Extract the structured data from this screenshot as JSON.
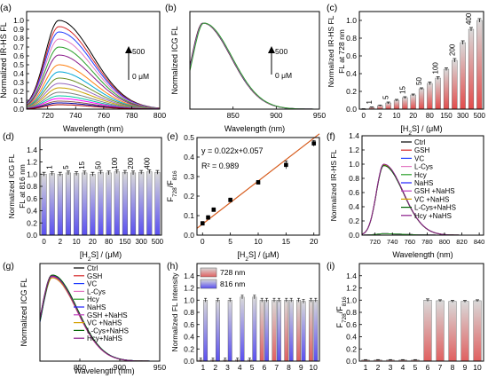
{
  "chart_data": [
    {
      "panel": "(a)",
      "type": "line",
      "xlabel": "Wavelength (nm)",
      "ylabel": "Normalized IR-HS FL",
      "xlim": [
        705,
        800
      ],
      "ylim": [
        0,
        1.1
      ],
      "xticks": [
        720,
        740,
        760,
        780,
        800
      ],
      "yticks": [
        0.0,
        0.1,
        0.2,
        0.3,
        0.4,
        0.5,
        0.6,
        0.7,
        0.8,
        0.9,
        1.0
      ],
      "annotation_high": "500",
      "annotation_low": "0 μM",
      "peak_x": 728,
      "curve_peaks": [
        1.0,
        0.93,
        0.87,
        0.79,
        0.7,
        0.61,
        0.5,
        0.42,
        0.35,
        0.29,
        0.24,
        0.19,
        0.15,
        0.12,
        0.09,
        0.07,
        0.05
      ],
      "colors": [
        "#000000",
        "#d62728",
        "#1f3cff",
        "#e377c2",
        "#2ca02c",
        "#8b1c8b",
        "#ff7f0e",
        "#00a6d6",
        "#6b8e23",
        "#9467bd",
        "#c8a000",
        "#7f7f7f",
        "#00c8a0",
        "#ff00ff",
        "#8c564b",
        "#0000aa",
        "#aa0000"
      ]
    },
    {
      "panel": "(b)",
      "type": "line",
      "xlabel": "Wavelength (nm)",
      "ylabel": "Normalized ICG FL",
      "xlim": [
        800,
        950
      ],
      "ylim": [
        0,
        1.1
      ],
      "xticks": [
        850,
        900,
        950
      ],
      "annotation_high": "500",
      "annotation_low": "0 μM",
      "peak_x": 815,
      "peak_y": 0.97
    },
    {
      "panel": "(c)",
      "type": "bar",
      "xlabel": "[H2S] / (μM)",
      "ylabel": "Normalized IR-HS FL at 728 nm",
      "categories": [
        "0",
        "1",
        "2",
        "5",
        "10",
        "15",
        "20",
        "50",
        "80",
        "100",
        "150",
        "200",
        "300",
        "400",
        "500"
      ],
      "values": [
        0.0,
        0.02,
        0.04,
        0.07,
        0.1,
        0.13,
        0.16,
        0.23,
        0.29,
        0.35,
        0.45,
        0.55,
        0.75,
        0.9,
        1.0
      ],
      "errors": [
        0.005,
        0.005,
        0.005,
        0.01,
        0.01,
        0.01,
        0.01,
        0.01,
        0.015,
        0.015,
        0.015,
        0.02,
        0.02,
        0.02,
        0.02
      ],
      "xticks": [
        "0",
        "2",
        "10",
        "20",
        "80",
        "150",
        "300",
        "500"
      ],
      "ylim": [
        0,
        1.1
      ],
      "yticks": [
        0.0,
        0.2,
        0.4,
        0.6,
        0.8,
        1.0
      ],
      "bar_labels": [
        {
          "after": "1",
          "text": "1"
        },
        {
          "after": "5",
          "text": "5"
        },
        {
          "after": "15",
          "text": "15"
        },
        {
          "after": "50",
          "text": "50"
        },
        {
          "after": "100",
          "text": "100"
        },
        {
          "after": "200",
          "text": "200"
        },
        {
          "after": "400",
          "text": "400"
        }
      ]
    },
    {
      "panel": "(d)",
      "type": "bar",
      "xlabel": "[H2S] / (μM)",
      "ylabel": "Normalized ICG FL at 816 nm",
      "categories": [
        "0",
        "1",
        "2",
        "5",
        "10",
        "15",
        "20",
        "50",
        "80",
        "100",
        "150",
        "200",
        "300",
        "400",
        "500"
      ],
      "values": [
        1.0,
        1.01,
        1.0,
        1.02,
        1.01,
        1.02,
        1.0,
        1.03,
        1.02,
        1.04,
        1.03,
        1.02,
        1.03,
        1.04,
        1.03
      ],
      "errors": [
        0.03,
        0.03,
        0.03,
        0.03,
        0.03,
        0.03,
        0.03,
        0.03,
        0.03,
        0.03,
        0.03,
        0.03,
        0.03,
        0.03,
        0.03
      ],
      "xticks": [
        "0",
        "2",
        "10",
        "20",
        "80",
        "150",
        "300",
        "500"
      ],
      "ylim": [
        0,
        1.6
      ],
      "yticks": [
        0.0,
        0.2,
        0.4,
        0.6,
        0.8,
        1.0,
        1.2,
        1.4
      ],
      "bar_labels": [
        {
          "after": "1",
          "text": "1"
        },
        {
          "after": "5",
          "text": "5"
        },
        {
          "after": "15",
          "text": "15"
        },
        {
          "after": "50",
          "text": "50"
        },
        {
          "after": "100",
          "text": "100"
        },
        {
          "after": "200",
          "text": "200"
        },
        {
          "after": "400",
          "text": "400"
        }
      ]
    },
    {
      "panel": "(e)",
      "type": "scatter",
      "xlabel": "[H2S] / (μM)",
      "ylabel": "F728/F816",
      "x": [
        0,
        1,
        2,
        5,
        10,
        15,
        20
      ],
      "y": [
        0.06,
        0.09,
        0.13,
        0.18,
        0.27,
        0.36,
        0.47
      ],
      "errors": [
        0.01,
        0.01,
        0.01,
        0.01,
        0.01,
        0.02,
        0.015
      ],
      "fit": {
        "slope": 0.022,
        "intercept": 0.057
      },
      "equation": "y = 0.022x+0.057",
      "r2_label": "R² = 0.989",
      "xlim": [
        -1,
        21
      ],
      "ylim": [
        0,
        0.5
      ],
      "xticks": [
        0,
        5,
        10,
        15,
        20
      ],
      "yticks": [
        0.0,
        0.1,
        0.2,
        0.3,
        0.4,
        0.5
      ]
    },
    {
      "panel": "(f)",
      "type": "line",
      "xlabel": "Wavelength (nm)",
      "ylabel": "Normalized IR-HS FL",
      "xlim": [
        705,
        845
      ],
      "ylim": [
        0,
        1.4
      ],
      "xticks": [
        720,
        740,
        760,
        780,
        800,
        820,
        840
      ],
      "yticks": [
        0.0,
        0.2,
        0.4,
        0.6,
        0.8,
        1.0,
        1.2,
        1.4
      ],
      "peak_x": 730,
      "legend": [
        "Ctrl",
        "GSH",
        "VC",
        "L-Cys",
        "Hcy",
        "NaHS",
        "GSH +NaHS",
        "VC +NaHS",
        "L-Cys+NaHS",
        "Hcy +NaHS"
      ],
      "colors": [
        "#000000",
        "#d62728",
        "#1f3cff",
        "#e377c2",
        "#2ca02c",
        "#1f1fff",
        "#c040c0",
        "#d4a000",
        "#006400",
        "#8b1c8b"
      ],
      "curve_peaks": [
        0.02,
        0.02,
        0.02,
        0.02,
        0.02,
        0.99,
        0.98,
        0.99,
        0.98,
        1.0
      ]
    },
    {
      "panel": "(g)",
      "type": "line",
      "xlabel": "Wavelength (nm)",
      "ylabel": "Normalized ICG FL",
      "xlim": [
        800,
        950
      ],
      "ylim": [
        0,
        1.1
      ],
      "xticks": [
        850,
        900,
        950
      ],
      "peak_x": 815,
      "legend": [
        "Ctrl",
        "GSH",
        "VC",
        "L-Cys",
        "Hcy",
        "NaHS",
        "GSH +NaHS",
        "VC +NaHS",
        "L-Cys+NaHS",
        "Hcy+NaHS"
      ],
      "colors": [
        "#000000",
        "#d62728",
        "#1f3cff",
        "#e377c2",
        "#2ca02c",
        "#1f1fff",
        "#c040c0",
        "#d4a000",
        "#006400",
        "#8b1c8b"
      ]
    },
    {
      "panel": "(h)",
      "type": "bar",
      "ylabel": "Normalized FL Intensity",
      "categories": [
        "1",
        "2",
        "3",
        "4",
        "5",
        "6",
        "7",
        "8",
        "9",
        "10"
      ],
      "series": [
        {
          "name": "728 nm",
          "values": [
            0.02,
            0.02,
            0.02,
            0.02,
            0.02,
            1.0,
            1.0,
            1.0,
            1.0,
            1.0
          ]
        },
        {
          "name": "816 nm",
          "values": [
            1.0,
            1.0,
            1.0,
            1.05,
            1.05,
            1.0,
            1.0,
            1.0,
            0.98,
            1.0
          ]
        }
      ],
      "ylim": [
        0,
        1.6
      ],
      "yticks": [
        0.0,
        0.2,
        0.4,
        0.6,
        0.8,
        1.0,
        1.2,
        1.4
      ]
    },
    {
      "panel": "(i)",
      "type": "bar",
      "ylabel": "F728/F816",
      "categories": [
        "1",
        "2",
        "3",
        "4",
        "5",
        "6",
        "7",
        "8",
        "9",
        "10"
      ],
      "values": [
        0.02,
        0.02,
        0.02,
        0.02,
        0.02,
        1.0,
        0.99,
        0.98,
        0.98,
        0.99
      ],
      "errors": [
        0.005,
        0.005,
        0.005,
        0.005,
        0.005,
        0.02,
        0.015,
        0.015,
        0.015,
        0.015
      ],
      "ylim": [
        0,
        1.6
      ],
      "yticks": [
        0.0,
        0.2,
        0.4,
        0.6,
        0.8,
        1.0,
        1.2,
        1.4
      ]
    }
  ]
}
